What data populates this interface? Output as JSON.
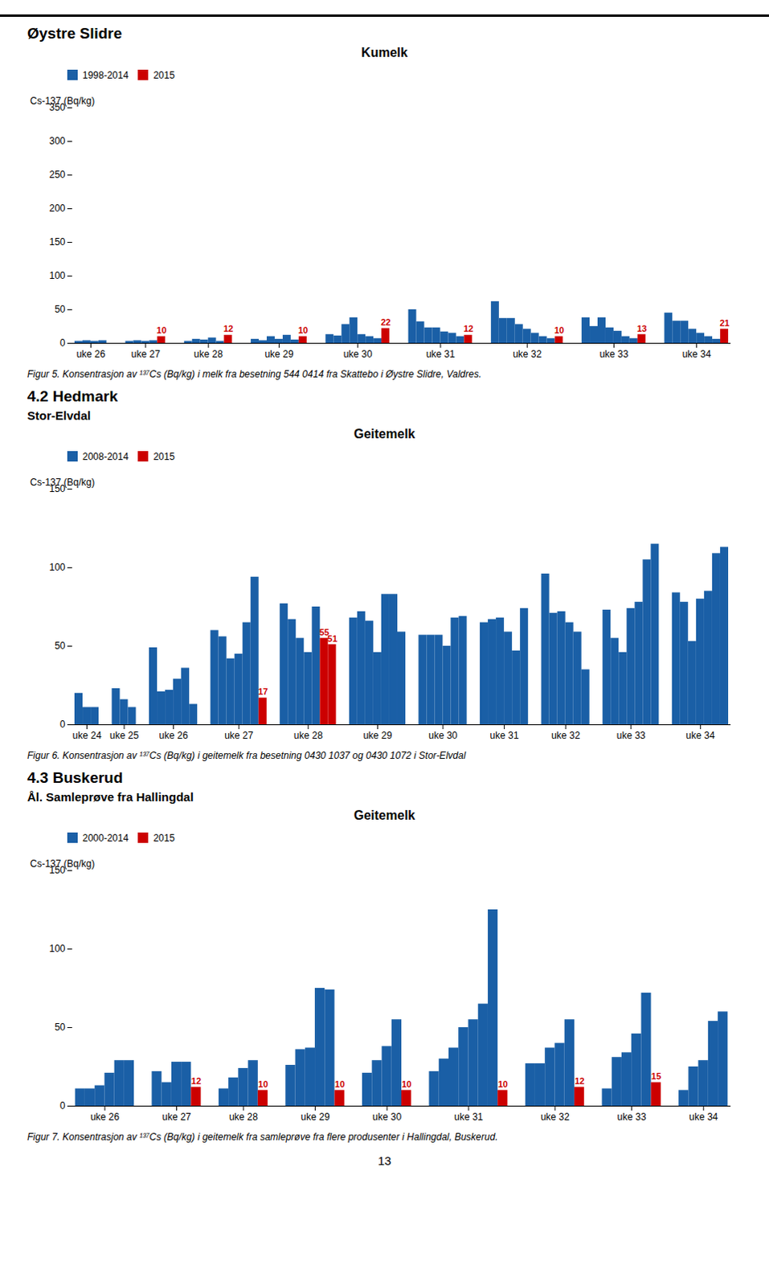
{
  "chart_data": [
    {
      "type": "bar",
      "heading": "Øystre Slidre",
      "title": "Kumelk",
      "ylabel": "Cs-137 (Bq/kg)",
      "ylim": [
        0,
        350
      ],
      "yticks": [
        0,
        50,
        100,
        150,
        200,
        250,
        300,
        350
      ],
      "grid": false,
      "legend": "upper left",
      "categories": [
        "uke 26",
        "uke 27",
        "uke 28",
        "uke 29",
        "uke 30",
        "uke 31",
        "uke 32",
        "uke 33",
        "uke 34"
      ],
      "series": [
        {
          "name": "1998-2014",
          "color": "#1a5fa6",
          "values": [
            [
              3,
              4,
              3,
              4
            ],
            [
              3,
              4,
              3,
              4
            ],
            [
              3,
              6,
              5,
              8,
              3
            ],
            [
              6,
              4,
              10,
              6,
              12,
              5
            ],
            [
              13,
              11,
              28,
              38,
              13,
              10,
              7
            ],
            [
              50,
              32,
              23,
              23,
              17,
              15,
              10
            ],
            [
              62,
              37,
              37,
              28,
              21,
              15,
              10,
              7
            ],
            [
              38,
              25,
              38,
              23,
              18,
              10,
              7
            ],
            [
              45,
              33,
              33,
              21,
              15,
              10,
              6
            ]
          ]
        },
        {
          "name": "2015",
          "color": "#cc0000",
          "data_labels": true,
          "values": [
            [],
            [
              10
            ],
            [
              12
            ],
            [
              10
            ],
            [
              22
            ],
            [
              12
            ],
            [
              10
            ],
            [
              13
            ],
            [
              21
            ]
          ]
        }
      ],
      "caption": "Figur 5. Konsentrasjon av ¹³⁷Cs (Bq/kg) i melk fra besetning 544 0414 fra Skattebo i Øystre Slidre, Valdres."
    },
    {
      "type": "bar",
      "heading": "4.2 Hedmark",
      "subheading": "Stor-Elvdal",
      "title": "Geitemelk",
      "ylabel": "Cs-137 (Bq/kg)",
      "ylim": [
        0,
        150
      ],
      "yticks": [
        0,
        50,
        100,
        150
      ],
      "grid": false,
      "legend": "upper left",
      "categories": [
        "uke 24",
        "uke 25",
        "uke 26",
        "uke 27",
        "uke 28",
        "uke 29",
        "uke 30",
        "uke 31",
        "uke 32",
        "uke 33",
        "uke 34"
      ],
      "series": [
        {
          "name": "2008-2014",
          "color": "#1a5fa6",
          "values": [
            [
              20,
              11,
              11
            ],
            [
              23,
              16,
              11
            ],
            [
              49,
              21,
              22,
              29,
              36,
              13
            ],
            [
              60,
              56,
              42,
              45,
              65,
              94
            ],
            [
              77,
              67,
              55,
              46,
              75
            ],
            [
              68,
              72,
              66,
              46,
              83,
              83,
              59
            ],
            [
              57,
              57,
              57,
              50,
              68,
              69
            ],
            [
              65,
              67,
              68,
              59,
              47,
              74
            ],
            [
              96,
              71,
              72,
              65,
              59,
              35
            ],
            [
              73,
              55,
              46,
              74,
              78,
              105,
              115
            ],
            [
              84,
              78,
              53,
              80,
              85,
              109,
              113
            ]
          ]
        },
        {
          "name": "2015",
          "color": "#cc0000",
          "data_labels": true,
          "values": [
            [],
            [],
            [],
            [
              17
            ],
            [
              55,
              51
            ],
            [],
            [],
            [],
            [],
            [],
            []
          ]
        }
      ],
      "caption": "Figur 6. Konsentrasjon av ¹³⁷Cs (Bq/kg) i geitemelk fra besetning 0430 1037 og 0430 1072 i Stor-Elvdal"
    },
    {
      "type": "bar",
      "heading": "4.3 Buskerud",
      "subheading": "Ål. Samleprøve fra Hallingdal",
      "title": "Geitemelk",
      "ylabel": "Cs-137 (Bq/kg)",
      "ylim": [
        0,
        150
      ],
      "yticks": [
        0,
        50,
        100,
        150
      ],
      "grid": false,
      "legend": "upper left",
      "categories": [
        "uke 26",
        "uke 27",
        "uke 28",
        "uke 29",
        "uke 30",
        "uke 31",
        "uke 32",
        "uke 33",
        "uke 34"
      ],
      "series": [
        {
          "name": "2000-2014",
          "color": "#1a5fa6",
          "values": [
            [
              11,
              11,
              13,
              21,
              29,
              29
            ],
            [
              22,
              15,
              28,
              28
            ],
            [
              11,
              18,
              24,
              29
            ],
            [
              26,
              36,
              37,
              75,
              74
            ],
            [
              21,
              29,
              38,
              55
            ],
            [
              22,
              30,
              37,
              50,
              55,
              65,
              125
            ],
            [
              27,
              27,
              37,
              40,
              55
            ],
            [
              11,
              31,
              34,
              46,
              72
            ],
            [
              10,
              25,
              29,
              54,
              60
            ]
          ]
        },
        {
          "name": "2015",
          "color": "#cc0000",
          "data_labels": true,
          "values": [
            [],
            [
              12
            ],
            [
              10
            ],
            [
              10
            ],
            [
              10
            ],
            [
              10
            ],
            [
              12
            ],
            [
              15
            ],
            []
          ]
        }
      ],
      "caption": "Figur 7. Konsentrasjon av ¹³⁷Cs (Bq/kg) i geitemelk fra samleprøve fra flere produsenter i Hallingdal, Buskerud."
    }
  ],
  "page_number": "13"
}
